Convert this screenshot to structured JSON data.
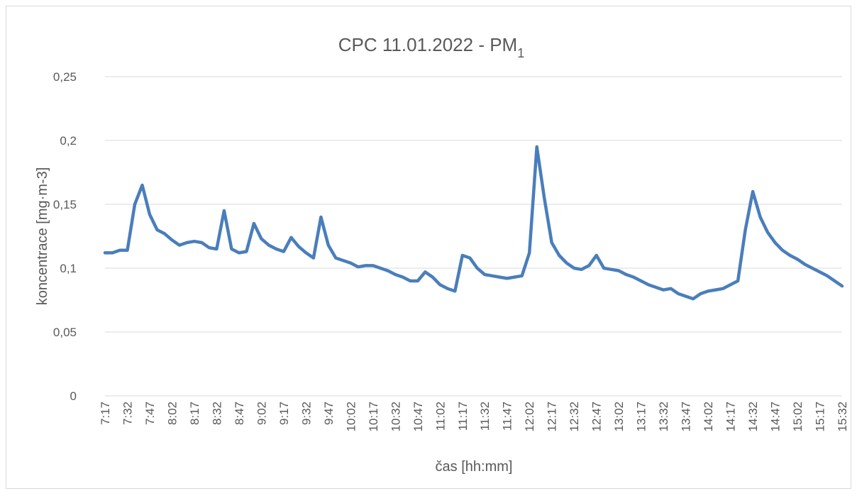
{
  "chart_data": {
    "type": "line",
    "title": "CPC 11.01.2022 - PM",
    "title_subscript": "1",
    "x_label": "čas [hh:mm]",
    "y_label": "koncentrace [mg·m-3]",
    "categories": [
      "7:17",
      null,
      null,
      "7:32",
      null,
      null,
      "7:47",
      null,
      null,
      "8:02",
      null,
      null,
      "8:17",
      null,
      null,
      "8:32",
      null,
      null,
      "8:47",
      null,
      null,
      "9:02",
      null,
      null,
      "9:17",
      null,
      null,
      "9:32",
      null,
      null,
      "9:47",
      null,
      null,
      "10:02",
      null,
      null,
      "10:17",
      null,
      null,
      "10:32",
      null,
      null,
      "10:47",
      null,
      null,
      "11:02",
      null,
      null,
      "11:17",
      null,
      null,
      "11:32",
      null,
      null,
      "11:47",
      null,
      null,
      "12:02",
      null,
      null,
      "12:17",
      null,
      null,
      "12:32",
      null,
      null,
      "12:47",
      null,
      null,
      "13:02",
      null,
      null,
      "13:17",
      null,
      null,
      "13:32",
      null,
      null,
      "13:47",
      null,
      null,
      "14:02",
      null,
      null,
      "14:17",
      null,
      null,
      "14:32",
      null,
      null,
      "14:47",
      null,
      null,
      "15:02",
      null,
      null,
      "15:17",
      null,
      null,
      "15:32"
    ],
    "series": [
      {
        "name": "PM1",
        "color": "#4a7ebb",
        "values": [
          0.112,
          0.112,
          0.114,
          0.114,
          0.15,
          0.165,
          0.142,
          0.13,
          0.127,
          0.122,
          0.118,
          0.12,
          0.121,
          0.12,
          0.116,
          0.115,
          0.145,
          0.115,
          0.112,
          0.113,
          0.135,
          0.123,
          0.118,
          0.115,
          0.113,
          0.124,
          0.117,
          0.112,
          0.108,
          0.14,
          0.118,
          0.108,
          0.106,
          0.104,
          0.101,
          0.102,
          0.102,
          0.1,
          0.098,
          0.095,
          0.093,
          0.09,
          0.09,
          0.097,
          0.093,
          0.087,
          0.084,
          0.082,
          0.11,
          0.108,
          0.1,
          0.095,
          0.094,
          0.093,
          0.092,
          0.093,
          0.094,
          0.112,
          0.195,
          0.155,
          0.12,
          0.11,
          0.104,
          0.1,
          0.099,
          0.102,
          0.11,
          0.1,
          0.099,
          0.098,
          0.095,
          0.093,
          0.09,
          0.087,
          0.085,
          0.083,
          0.084,
          0.08,
          0.078,
          0.076,
          0.08,
          0.082,
          0.083,
          0.084,
          0.087,
          0.09,
          0.13,
          0.16,
          0.14,
          0.128,
          0.12,
          0.114,
          0.11,
          0.107,
          0.103,
          0.1,
          0.097,
          0.094,
          0.09,
          0.086
        ]
      }
    ],
    "ylim": [
      0,
      0.25
    ],
    "yticks": [
      0,
      {
        "value": 0.05,
        "label": "0,05"
      },
      {
        "value": 0.1,
        "label": "0,1"
      },
      {
        "value": 0.15,
        "label": "0,15"
      },
      {
        "value": 0.2,
        "label": "0,2"
      },
      {
        "value": 0.25,
        "label": "0,25"
      }
    ],
    "grid": true
  }
}
